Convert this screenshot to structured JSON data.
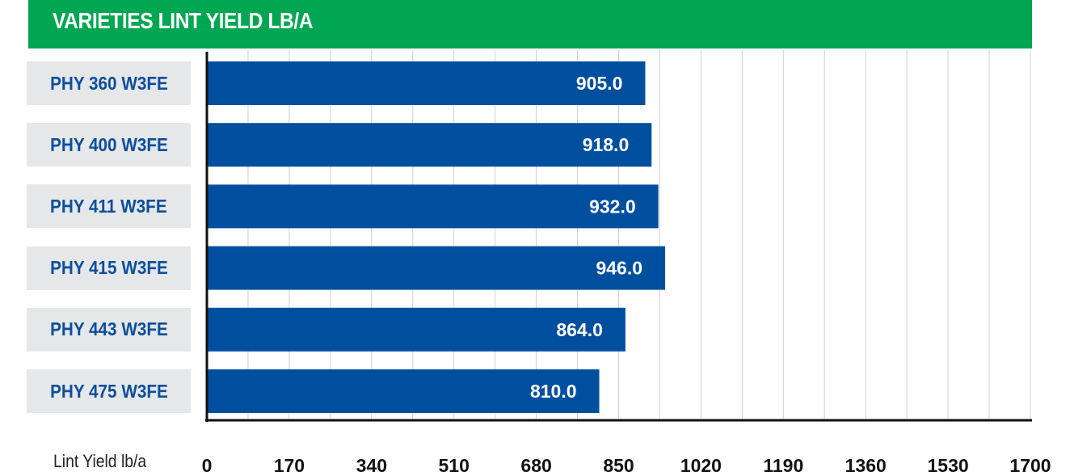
{
  "chart_data": {
    "type": "bar",
    "orientation": "horizontal",
    "title": "VARIETIES LINT YIELD LB/A",
    "xlabel": "Lint Yield lb/a",
    "ylabel": "",
    "categories": [
      "PHY 360 W3FE",
      "PHY 400 W3FE",
      "PHY 411 W3FE",
      "PHY 415 W3FE",
      "PHY 443 W3FE",
      "PHY 475 W3FE"
    ],
    "values": [
      905.0,
      918.0,
      932.0,
      946.0,
      864.0,
      810.0
    ],
    "value_labels": [
      "905.0",
      "918.0",
      "932.0",
      "946.0",
      "864.0",
      "810.0"
    ],
    "xlim": [
      0,
      1700
    ],
    "ticks": [
      0,
      170,
      340,
      510,
      680,
      850,
      1020,
      1190,
      1360,
      1530,
      1700
    ],
    "grid": true,
    "legend": "none",
    "colors": {
      "title_bg": "#00a651",
      "bar": "#004f9f",
      "category_bg": "#e6e7e9",
      "category_text": "#0b4e9c",
      "grid": "#d0d0d0"
    }
  }
}
